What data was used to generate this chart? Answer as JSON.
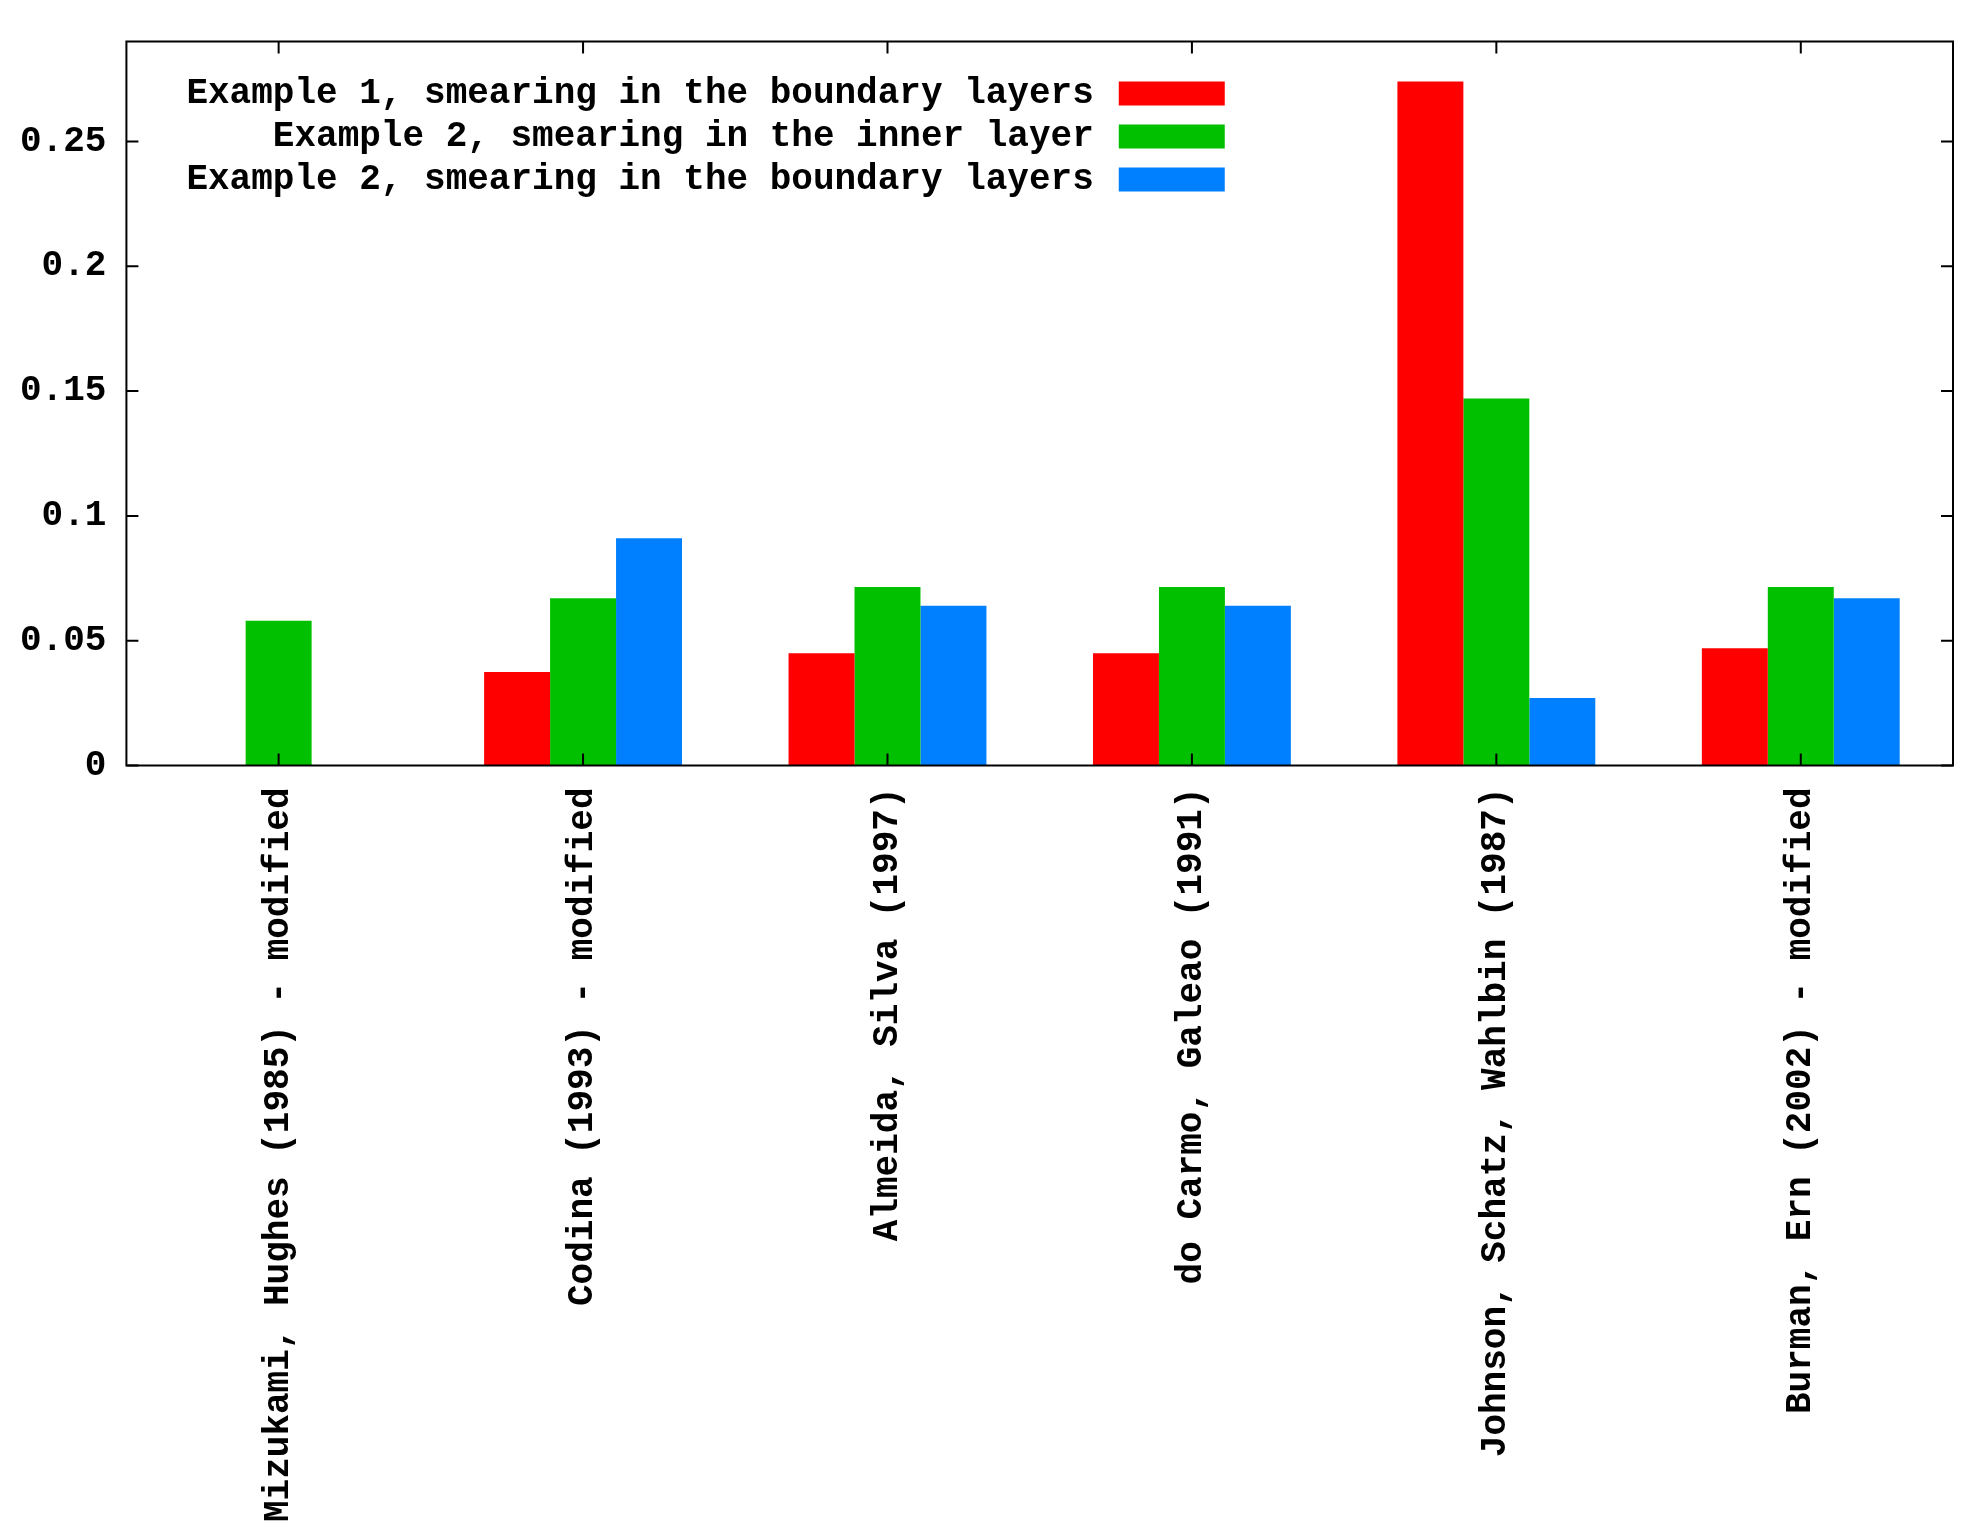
{
  "chart_data": {
    "type": "bar",
    "categories": [
      "Mizukami, Hughes (1985) - modified",
      "Codina (1993) - modified",
      "Almeida, Silva (1997)",
      "do Carmo, Galeao (1991)",
      "Johnson, Schatz, Wahlbin (1987)",
      "Burman, Ern (2002) - modified"
    ],
    "series": [
      {
        "name": "Example 1, smearing in the boundary layers",
        "color": "#ff0000",
        "values": [
          null,
          0.0375,
          0.045,
          0.045,
          0.274,
          0.047
        ]
      },
      {
        "name": "Example 2, smearing in the inner layer",
        "color": "#00c000",
        "values": [
          0.058,
          0.067,
          0.0715,
          0.0715,
          0.147,
          0.0715
        ]
      },
      {
        "name": "Example 2, smearing in the boundary layers",
        "color": "#0080ff",
        "values": [
          null,
          0.091,
          0.064,
          0.064,
          0.027,
          0.067
        ]
      }
    ],
    "ylim": [
      0,
      0.29
    ],
    "yticks": [
      0,
      0.05,
      0.1,
      0.15,
      0.2,
      0.25
    ],
    "grid": false,
    "legend": "top left"
  }
}
